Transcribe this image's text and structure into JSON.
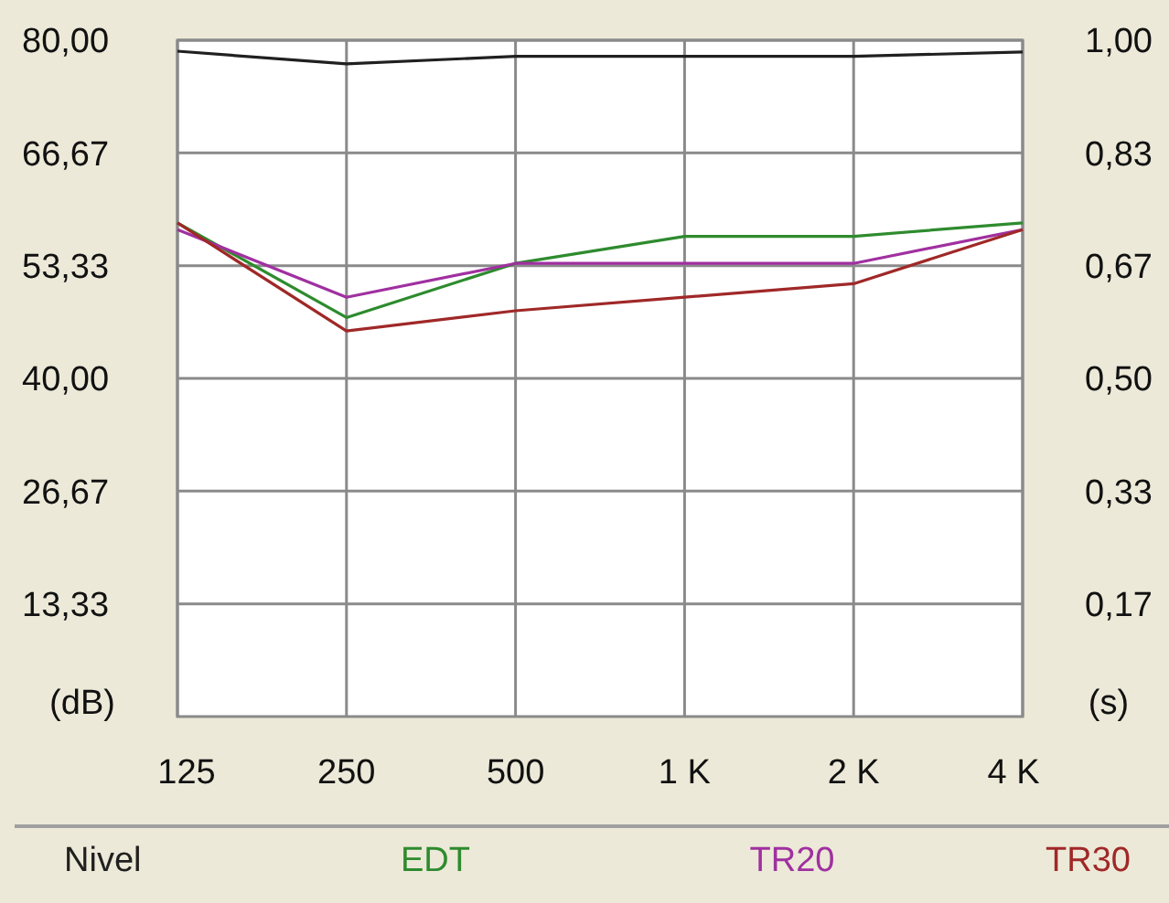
{
  "chart_data": {
    "type": "line",
    "ylabel": "(dB)",
    "y2label": "(s)",
    "categories": [
      "125",
      "250",
      "500",
      "1 K",
      "2 K",
      "4 K"
    ],
    "series": [
      {
        "name": "Nivel",
        "color": "#202020",
        "values": [
          78.7,
          77.2,
          78.1,
          78.1,
          78.1,
          78.6
        ]
      },
      {
        "name": "EDT",
        "color": "#2e8b2e",
        "axis": "y2",
        "values": [
          0.73,
          0.59,
          0.67,
          0.71,
          0.71,
          0.73
        ]
      },
      {
        "name": "TR20",
        "color": "#a030a0",
        "axis": "y2",
        "values": [
          0.72,
          0.62,
          0.67,
          0.67,
          0.67,
          0.72
        ]
      },
      {
        "name": "TR30",
        "color": "#a02828",
        "axis": "y2",
        "values": [
          0.73,
          0.57,
          0.6,
          0.62,
          0.64,
          0.72
        ]
      }
    ],
    "ylim": [
      0,
      80
    ],
    "yticks": [
      {
        "value": 13.33,
        "label": "13,33"
      },
      {
        "value": 26.67,
        "label": "26,67"
      },
      {
        "value": 40,
        "label": "40,00"
      },
      {
        "value": 53.33,
        "label": "53,33"
      },
      {
        "value": 66.67,
        "label": "66,67"
      },
      {
        "value": 80,
        "label": "80,00"
      }
    ],
    "y2lim": [
      0,
      1
    ],
    "y2ticks": [
      {
        "value": 0.1667,
        "label": "0,17"
      },
      {
        "value": 0.3333,
        "label": "0,33"
      },
      {
        "value": 0.5,
        "label": "0,50"
      },
      {
        "value": 0.6667,
        "label": "0,67"
      },
      {
        "value": 0.8333,
        "label": "0,83"
      },
      {
        "value": 1,
        "label": "1,00"
      }
    ],
    "grid": true,
    "legend": "bottom",
    "marker": "none",
    "line_style": "solid"
  }
}
